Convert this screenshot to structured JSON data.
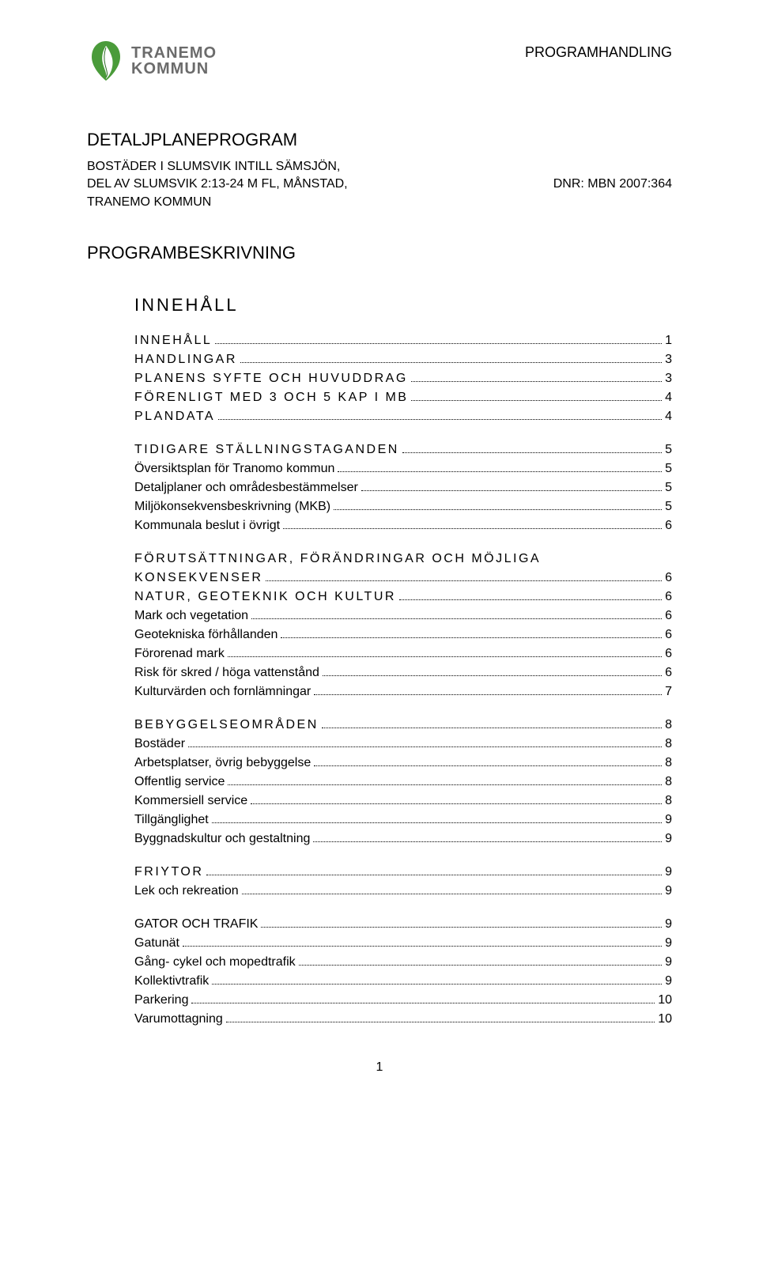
{
  "header": {
    "logo_line1": "TRANEMO",
    "logo_line2": "KOMMUN",
    "right_label": "PROGRAMHANDLING"
  },
  "title_main": "DETALJPLANEPROGRAM",
  "subtitle": {
    "line1": "BOSTÄDER I SLUMSVIK INTILL SÄMSJÖN,",
    "line2_left": "DEL AV SLUMSVIK 2:13-24 M FL, MÅNSTAD,",
    "line2_right": "DNR: MBN 2007:364",
    "line3": "TRANEMO KOMMUN"
  },
  "section_title": "PROGRAMBESKRIVNING",
  "toc_title": "INNEHÅLL",
  "toc_groups": [
    [
      {
        "label": "INNEHÅLL",
        "page": "1",
        "spaced": true
      },
      {
        "label": "HANDLINGAR",
        "page": "3",
        "spaced": true
      },
      {
        "label": "PLANENS SYFTE OCH HUVUDDRAG",
        "page": "3",
        "spaced": true
      },
      {
        "label": "FÖRENLIGT MED 3 OCH 5 KAP I MB",
        "page": "4",
        "spaced": true
      },
      {
        "label": "PLANDATA",
        "page": "4",
        "spaced": true
      }
    ],
    [
      {
        "label": "TIDIGARE STÄLLNINGSTAGANDEN",
        "page": "5",
        "spaced": true
      },
      {
        "label": "Översiktsplan för Tranomo kommun",
        "page": "5",
        "spaced": false
      },
      {
        "label": "Detaljplaner och områdesbestämmelser",
        "page": "5",
        "spaced": false
      },
      {
        "label": "Miljökonsekvensbeskrivning (MKB)",
        "page": "5",
        "spaced": false
      },
      {
        "label": "Kommunala beslut i övrigt",
        "page": "6",
        "spaced": false
      }
    ],
    [
      {
        "label": "FÖRUTSÄTTNINGAR, FÖRÄNDRINGAR OCH MÖJLIGA KONSEKVENSER",
        "page": "6",
        "spaced": true,
        "wrap": true
      },
      {
        "label": "NATUR, GEOTEKNIK OCH KULTUR",
        "page": "6",
        "spaced": true
      },
      {
        "label": "Mark och vegetation",
        "page": "6",
        "spaced": false
      },
      {
        "label": "Geotekniska förhållanden",
        "page": "6",
        "spaced": false
      },
      {
        "label": "Förorenad mark",
        "page": "6",
        "spaced": false
      },
      {
        "label": "Risk för skred / höga vattenstånd",
        "page": "6",
        "spaced": false
      },
      {
        "label": "Kulturvärden och fornlämningar",
        "page": "7",
        "spaced": false
      }
    ],
    [
      {
        "label": "BEBYGGELSEOMRÅDEN",
        "page": "8",
        "spaced": true
      },
      {
        "label": "Bostäder",
        "page": "8",
        "spaced": false
      },
      {
        "label": "Arbetsplatser, övrig bebyggelse",
        "page": "8",
        "spaced": false
      },
      {
        "label": "Offentlig service",
        "page": "8",
        "spaced": false
      },
      {
        "label": "Kommersiell service",
        "page": "8",
        "spaced": false
      },
      {
        "label": "Tillgänglighet",
        "page": "9",
        "spaced": false
      },
      {
        "label": "Byggnadskultur och gestaltning",
        "page": "9",
        "spaced": false
      }
    ],
    [
      {
        "label": "FRIYTOR",
        "page": "9",
        "spaced": true
      },
      {
        "label": "Lek och rekreation",
        "page": "9",
        "spaced": false
      }
    ],
    [
      {
        "label": "GATOR OCH TRAFIK",
        "page": "9",
        "spaced": false
      },
      {
        "label": "Gatunät",
        "page": "9",
        "spaced": false
      },
      {
        "label": "Gång- cykel och mopedtrafik",
        "page": "9",
        "spaced": false
      },
      {
        "label": "Kollektivtrafik",
        "page": "9",
        "spaced": false
      },
      {
        "label": "Parkering",
        "page": "10",
        "spaced": false
      },
      {
        "label": "Varumottagning",
        "page": "10",
        "spaced": false
      }
    ]
  ],
  "page_number": "1",
  "colors": {
    "logo_green": "#4a9b3a",
    "logo_dark_green": "#2e6b28",
    "text_gray": "#6b6b6b",
    "black": "#000000",
    "bg": "#ffffff"
  }
}
